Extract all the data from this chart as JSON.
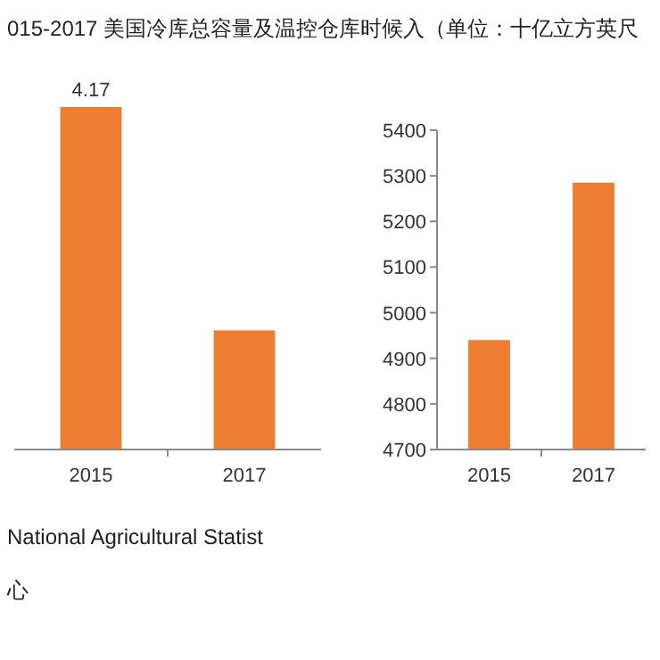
{
  "chart_data": [
    {
      "type": "bar",
      "title": "015-2017 美国冷库总容量及温控仓库时候入（单位：十亿立方英尺",
      "categories": [
        "2015",
        "2017"
      ],
      "values": [
        4.17,
        1.45
      ],
      "value_labels": [
        "4.17",
        null
      ],
      "color": "#ed7d31",
      "annotations": [
        "National Agricultural Statist",
        "心"
      ]
    },
    {
      "type": "bar",
      "categories": [
        "2015",
        "2017"
      ],
      "values": [
        4940,
        5285
      ],
      "color": "#ed7d31",
      "ylim": [
        4700,
        5400
      ],
      "yticks": [
        4700,
        4800,
        4900,
        5000,
        5100,
        5200,
        5300,
        5400
      ]
    }
  ]
}
